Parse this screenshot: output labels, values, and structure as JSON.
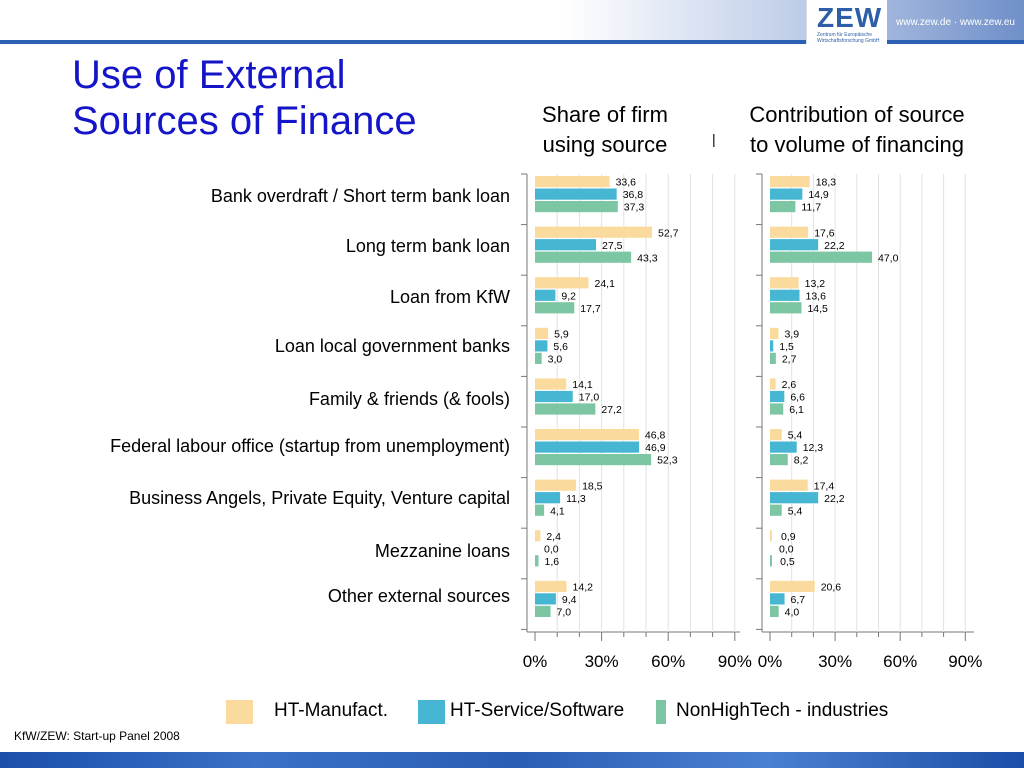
{
  "header": {
    "logo_text": "ZEW",
    "logo_subtext": "Zentrum für Europäische Wirtschaftsforschung GmbH",
    "url": "www.zew.de · www.zew.eu"
  },
  "slide": {
    "title_line1": "Use of External",
    "title_line2": "Sources of Finance",
    "source": "KfW/ZEW: Start-up Panel 2008"
  },
  "colors": {
    "manufact": "#fadb9d",
    "service": "#46b6d2",
    "nonhightech": "#7cc6a3",
    "title": "#1414c8"
  },
  "chart_data": [
    {
      "type": "bar",
      "orientation": "horizontal",
      "title_line1": "Share of firm",
      "title_line2": "using source",
      "categories": [
        "Bank overdraft / Short term bank loan",
        "Long term bank loan",
        "Loan from KfW",
        "Loan local government banks",
        "Family & friends (& fools)",
        "Federal labour office (startup from unemployment)",
        "Business Angels, Private Equity, Venture capital",
        "Mezzanine loans",
        "Other external sources"
      ],
      "series": [
        {
          "name": "HT-Manufact.",
          "values": [
            33.6,
            52.7,
            24.1,
            5.9,
            14.1,
            46.8,
            18.5,
            2.4,
            14.2
          ],
          "labels": [
            "33,6",
            "52,7",
            "24,1",
            "5,9",
            "14,1",
            "46,8",
            "18,5",
            "2,4",
            "14,2"
          ]
        },
        {
          "name": "HT-Service/Software",
          "values": [
            36.8,
            27.5,
            9.2,
            5.6,
            17.0,
            46.9,
            11.3,
            0.0,
            9.4
          ],
          "labels": [
            "36,8",
            "27,5",
            "9,2",
            "5,6",
            "17,0",
            "46,9",
            "11,3",
            "0,0",
            "9,4"
          ]
        },
        {
          "name": "NonHighTech - industries",
          "values": [
            37.3,
            43.3,
            17.7,
            3.0,
            27.2,
            52.3,
            4.1,
            1.6,
            7.0
          ],
          "labels": [
            "37,3",
            "43,3",
            "17,7",
            "3,0",
            "27,2",
            "52,3",
            "4,1",
            "1,6",
            "7,0"
          ]
        }
      ],
      "xlim": [
        0,
        100
      ],
      "ticks": [
        "0%",
        "30%",
        "60%",
        "90%"
      ],
      "tick_values": [
        0,
        30,
        60,
        90
      ],
      "grid": true
    },
    {
      "type": "bar",
      "orientation": "horizontal",
      "title_line1": "Contribution of source",
      "title_line2": "to volume of financing",
      "categories": [
        "Bank overdraft / Short term bank loan",
        "Long term bank loan",
        "Loan from KfW",
        "Loan local government banks",
        "Family & friends (& fools)",
        "Federal labour office (startup from unemployment)",
        "Business Angels, Private Equity, Venture capital",
        "Mezzanine loans",
        "Other external sources"
      ],
      "series": [
        {
          "name": "HT-Manufact.",
          "values": [
            18.3,
            17.6,
            13.2,
            3.9,
            2.6,
            5.4,
            17.4,
            0.9,
            20.6
          ],
          "labels": [
            "18,3",
            "17,6",
            "13,2",
            "3,9",
            "2,6",
            "5,4",
            "17,4",
            "0,9",
            "20,6"
          ]
        },
        {
          "name": "HT-Service/Software",
          "values": [
            14.9,
            22.2,
            13.6,
            1.5,
            6.6,
            12.3,
            22.2,
            0.0,
            6.7
          ],
          "labels": [
            "14,9",
            "22,2",
            "13,6",
            "1,5",
            "6,6",
            "12,3",
            "22,2",
            "0,0",
            "6,7"
          ]
        },
        {
          "name": "NonHighTech - industries",
          "values": [
            11.7,
            47.0,
            14.5,
            2.7,
            6.1,
            8.2,
            5.4,
            0.5,
            4.0
          ],
          "labels": [
            "11,7",
            "47,0",
            "14,5",
            "2,7",
            "6,1",
            "8,2",
            "5,4",
            "0,5",
            "4,0"
          ]
        }
      ],
      "xlim": [
        0,
        100
      ],
      "ticks": [
        "0%",
        "30%",
        "60%",
        "90%"
      ],
      "tick_values": [
        0,
        30,
        60,
        90
      ],
      "grid": true
    }
  ]
}
